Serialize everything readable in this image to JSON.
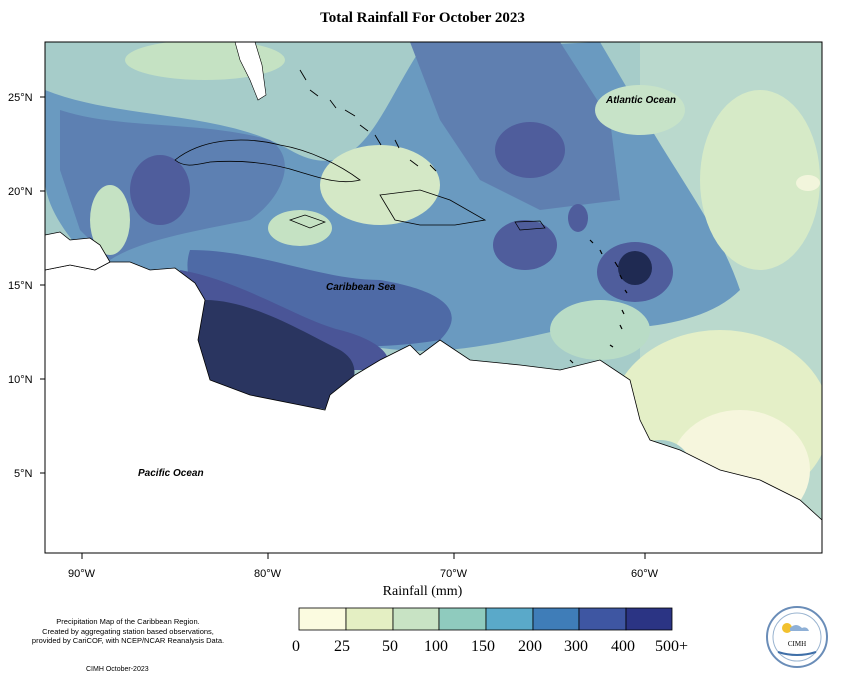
{
  "title": "Total Rainfall For October 2023",
  "axes": {
    "lat_labels": [
      "25°N",
      "20°N",
      "15°N",
      "10°N",
      "5°N"
    ],
    "lon_labels": [
      "90°W",
      "80°W",
      "70°W",
      "60°W"
    ],
    "xlabel": "Rainfall (mm)"
  },
  "regions": {
    "atlantic": "Atlantic Ocean",
    "caribbean": "Caribbean Sea",
    "pacific": "Pacific Ocean"
  },
  "legend": {
    "ticks": [
      "0",
      "25",
      "50",
      "100",
      "150",
      "200",
      "300",
      "400",
      "500+"
    ],
    "colors": [
      "#fbfbe0",
      "#e4efc3",
      "#c8e3c4",
      "#8fcbbe",
      "#5aa9c9",
      "#3f7db8",
      "#3e56a2",
      "#2b3484",
      "#1b2657"
    ]
  },
  "caption": {
    "line1": "Precipitation Map of the Caribbean Region.",
    "line2": "Created by aggregating station based observations,",
    "line3": "provided by CariCOF, with NCEP/NCAR Reanalysis Data."
  },
  "credit": "CIMH October-2023",
  "logo_text": "CIMH"
}
